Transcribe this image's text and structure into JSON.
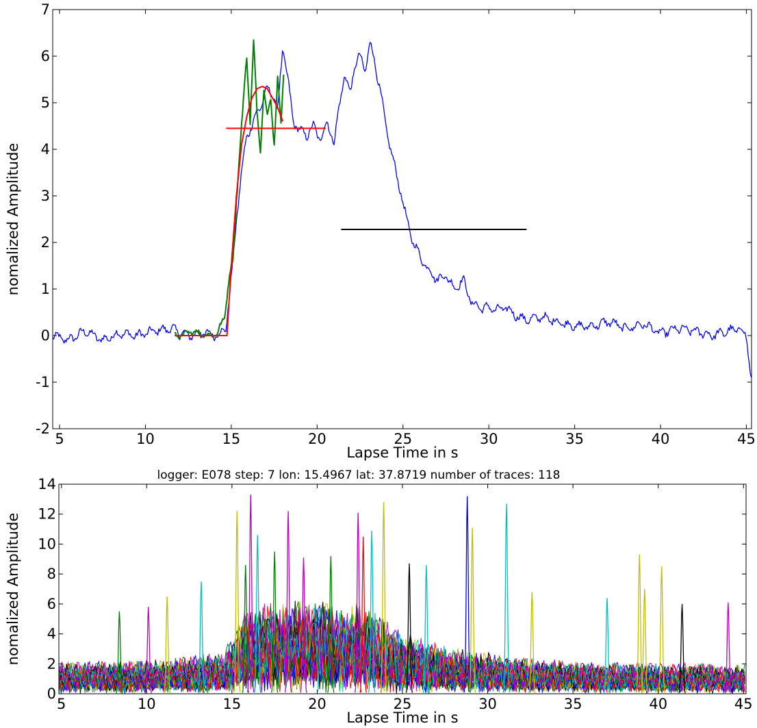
{
  "chart_data": [
    {
      "type": "line",
      "title": "",
      "xlabel": "Lapse Time in s",
      "ylabel": "nomalized Amplitude",
      "xlim": [
        4.6,
        45.3
      ],
      "ylim": [
        -2,
        7
      ],
      "xticks": [
        5,
        10,
        15,
        20,
        25,
        30,
        35,
        40,
        45
      ],
      "yticks": [
        -2,
        -1,
        0,
        1,
        2,
        3,
        4,
        5,
        6,
        7
      ],
      "grid": false,
      "series": [
        {
          "kind": "envelope",
          "color": "#0000ff",
          "x": [
            4.6,
            5.5,
            6.5,
            7.5,
            8.5,
            9.5,
            10.5,
            11.5,
            12.5,
            13.5,
            14.3,
            14.7,
            15.0,
            15.3,
            15.6,
            15.9,
            16.2,
            16.5,
            16.8,
            17.1,
            17.4,
            17.7,
            18.0,
            18.3,
            18.6,
            19.0,
            19.4,
            19.8,
            20.2,
            20.6,
            21.0,
            21.3,
            21.6,
            21.9,
            22.2,
            22.5,
            22.8,
            23.1,
            23.4,
            23.7,
            24.0,
            24.4,
            24.8,
            25.2,
            25.6,
            26.0,
            26.5,
            27.0,
            27.5,
            28.0,
            28.5,
            29.0,
            29.5,
            30.0,
            30.5,
            31.0,
            31.5,
            32.0,
            32.5,
            33.0,
            34.0,
            35.0,
            36.0,
            37.0,
            38.0,
            39.0,
            40.0,
            41.0,
            42.0,
            43.0,
            44.0,
            44.6,
            45.0,
            45.3
          ],
          "y": [
            0.0,
            -0.1,
            0.1,
            -0.1,
            0.05,
            0.0,
            0.1,
            0.15,
            0.0,
            0.05,
            0.0,
            0.2,
            1.2,
            2.5,
            3.5,
            4.3,
            4.5,
            4.8,
            5.0,
            5.3,
            5.2,
            4.8,
            6.2,
            5.5,
            4.6,
            4.4,
            4.3,
            4.5,
            4.2,
            4.6,
            4.1,
            5.0,
            5.6,
            5.2,
            5.8,
            6.0,
            5.7,
            6.3,
            5.8,
            5.2,
            4.5,
            3.8,
            3.2,
            2.5,
            2.0,
            1.7,
            1.4,
            1.2,
            1.3,
            1.0,
            1.2,
            0.7,
            0.6,
            0.6,
            0.55,
            0.6,
            0.45,
            0.35,
            0.35,
            0.4,
            0.3,
            0.2,
            0.2,
            0.3,
            0.15,
            0.25,
            0.05,
            0.15,
            0.1,
            0.0,
            0.1,
            0.15,
            0.0,
            -1.0
          ]
        },
        {
          "kind": "window",
          "color": "#008000",
          "x": [
            11.7,
            12.2,
            12.7,
            13.2,
            13.7,
            14.2,
            14.6,
            14.9,
            15.1,
            15.3,
            15.5,
            15.7,
            15.9,
            16.1,
            16.3,
            16.5,
            16.7,
            16.9,
            17.1,
            17.3,
            17.5,
            17.7,
            17.9,
            18.1
          ],
          "y": [
            0.0,
            0.0,
            0.1,
            0.05,
            0.0,
            0.05,
            0.4,
            1.3,
            1.6,
            2.9,
            4.0,
            5.0,
            6.0,
            4.6,
            6.3,
            4.8,
            4.0,
            5.3,
            4.7,
            5.1,
            4.1,
            5.5,
            4.6,
            6.0
          ]
        },
        {
          "kind": "fit",
          "color": "#ff0000",
          "x": [
            11.7,
            12.5,
            13.5,
            14.5,
            14.75,
            15.0,
            15.3,
            15.6,
            15.9,
            16.2,
            16.5,
            16.8,
            17.1,
            17.4,
            17.7,
            18.0
          ],
          "y": [
            0.0,
            0.0,
            0.0,
            0.0,
            0.0,
            1.5,
            3.0,
            4.1,
            4.7,
            5.1,
            5.3,
            5.35,
            5.3,
            5.1,
            4.9,
            4.6
          ]
        },
        {
          "kind": "level",
          "color": "#ff0000",
          "x": [
            14.7,
            20.5
          ],
          "y": [
            4.45,
            4.45
          ]
        },
        {
          "kind": "level",
          "color": "#000000",
          "x": [
            21.4,
            32.2
          ],
          "y": [
            2.28,
            2.28
          ]
        }
      ]
    },
    {
      "type": "line",
      "title": "logger: E078 step: 7 lon: 15.4967 lat: 37.8719 number of traces: 118",
      "xlabel": "Lapse Time in s",
      "ylabel": "nomalized Amplitude",
      "xlim": [
        4.85,
        45.15
      ],
      "ylim": [
        0,
        14
      ],
      "xticks": [
        5,
        10,
        15,
        20,
        25,
        30,
        35,
        40,
        45
      ],
      "yticks": [
        0,
        2,
        4,
        6,
        8,
        10,
        12,
        14
      ],
      "grid": false,
      "trace_count": 118,
      "trace_colors": [
        "#0000ff",
        "#008000",
        "#ff0000",
        "#00bfbf",
        "#bf00bf",
        "#bfbf00",
        "#000000"
      ],
      "noise_profile": {
        "x": [
          4.85,
          10,
          14.5,
          16,
          20,
          23,
          25,
          28,
          32,
          36,
          40,
          45.15
        ],
        "y": [
          2.3,
          2.4,
          3.0,
          6.5,
          6.8,
          6.2,
          4.5,
          3.3,
          2.6,
          2.3,
          2.2,
          2.1
        ]
      },
      "peaks": [
        {
          "x": 8.4,
          "y": 5.5,
          "color": "#008000"
        },
        {
          "x": 10.1,
          "y": 5.8,
          "color": "#bf00bf"
        },
        {
          "x": 11.2,
          "y": 6.5,
          "color": "#bfbf00"
        },
        {
          "x": 13.2,
          "y": 7.5,
          "color": "#00bfbf"
        },
        {
          "x": 15.3,
          "y": 12.2,
          "color": "#bfbf00"
        },
        {
          "x": 15.8,
          "y": 8.6,
          "color": "#008000"
        },
        {
          "x": 16.1,
          "y": 13.3,
          "color": "#bf00bf"
        },
        {
          "x": 16.5,
          "y": 10.6,
          "color": "#00bfbf"
        },
        {
          "x": 18.3,
          "y": 12.2,
          "color": "#bf00bf"
        },
        {
          "x": 17.5,
          "y": 9.5,
          "color": "#008000"
        },
        {
          "x": 19.2,
          "y": 9.1,
          "color": "#bf00bf"
        },
        {
          "x": 20.8,
          "y": 9.2,
          "color": "#008000"
        },
        {
          "x": 22.4,
          "y": 12.1,
          "color": "#bf00bf"
        },
        {
          "x": 22.7,
          "y": 10.5,
          "color": "#ff0000"
        },
        {
          "x": 23.2,
          "y": 10.9,
          "color": "#00bfbf"
        },
        {
          "x": 23.9,
          "y": 12.8,
          "color": "#bfbf00"
        },
        {
          "x": 25.4,
          "y": 8.7,
          "color": "#000000"
        },
        {
          "x": 26.4,
          "y": 8.6,
          "color": "#00bfbf"
        },
        {
          "x": 28.8,
          "y": 13.2,
          "color": "#0000ff"
        },
        {
          "x": 29.1,
          "y": 11.1,
          "color": "#bfbf00"
        },
        {
          "x": 31.1,
          "y": 12.7,
          "color": "#00bfbf"
        },
        {
          "x": 32.6,
          "y": 6.8,
          "color": "#bfbf00"
        },
        {
          "x": 37.0,
          "y": 6.4,
          "color": "#00bfbf"
        },
        {
          "x": 38.9,
          "y": 9.3,
          "color": "#bfbf00"
        },
        {
          "x": 39.2,
          "y": 7.0,
          "color": "#bfbf00"
        },
        {
          "x": 40.2,
          "y": 8.5,
          "color": "#bfbf00"
        },
        {
          "x": 41.4,
          "y": 6.0,
          "color": "#000000"
        },
        {
          "x": 44.1,
          "y": 6.1,
          "color": "#bf00bf"
        }
      ]
    }
  ]
}
